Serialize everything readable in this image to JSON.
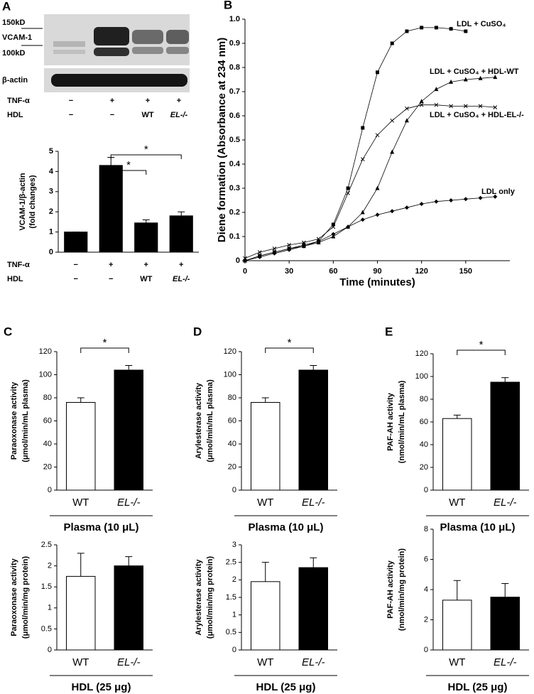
{
  "blot": {
    "panel": "A",
    "markers": [
      "150kD",
      "VCAM-1",
      "100kD",
      "β-actin"
    ],
    "rows": [
      {
        "label": "TNF-α",
        "values": [
          "−",
          "+",
          "+",
          "+"
        ]
      },
      {
        "label": "HDL",
        "values": [
          "−",
          "−",
          "WT",
          "EL-/-"
        ]
      }
    ]
  },
  "chart_data": [
    {
      "type": "bar",
      "ylabel": [
        "VCAM-1/β-actin",
        "(fold changes)"
      ],
      "categories": [
        null,
        null,
        null,
        null
      ],
      "category_rows": [
        {
          "label": "TNF-α",
          "values": [
            "−",
            "+",
            "+",
            "+"
          ]
        },
        {
          "label": "HDL",
          "values": [
            "−",
            "−",
            "WT",
            "EL-/-"
          ]
        }
      ],
      "values": [
        1,
        4.3,
        1.45,
        1.8
      ],
      "errors": [
        0,
        0.4,
        0.15,
        0.2
      ],
      "color": "#000000",
      "ylim": [
        0,
        5
      ],
      "yticks": [
        0,
        1,
        2,
        3,
        4,
        5
      ],
      "significance": [
        {
          "label": "*",
          "from": 1,
          "to": 2
        },
        {
          "label": "*",
          "from": 1,
          "to": 3
        }
      ]
    },
    {
      "type": "line",
      "panel": "B",
      "xlabel": "Time (minutes)",
      "ylabel": "Diene formation (Absorbance at 234 nm)",
      "xlim": [
        0,
        180
      ],
      "xticks": [
        0,
        30,
        60,
        90,
        120,
        150
      ],
      "ylim": [
        0,
        1
      ],
      "yticks": [
        0,
        0.1,
        0.2,
        0.3,
        0.4,
        0.5,
        0.6,
        0.7,
        0.8,
        0.9,
        {
          "value": 1,
          "label": "1.0"
        }
      ],
      "series": [
        {
          "name": "LDL + CuSO₄",
          "color": "#000000",
          "marker": "square",
          "x": [
            0,
            10,
            20,
            30,
            40,
            50,
            60,
            70,
            80,
            90,
            100,
            110,
            120,
            130,
            140,
            150
          ],
          "values": [
            0,
            0.02,
            0.035,
            0.05,
            0.065,
            0.08,
            0.15,
            0.3,
            0.55,
            0.78,
            0.9,
            0.95,
            0.965,
            0.965,
            0.96,
            0.95
          ]
        },
        {
          "name": "LDL + CuSO₄ + HDL-WT",
          "color": "#000000",
          "marker": "triangle",
          "x": [
            0,
            10,
            20,
            30,
            40,
            50,
            60,
            70,
            80,
            90,
            100,
            110,
            120,
            130,
            140,
            150,
            160,
            170
          ],
          "values": [
            0,
            0.02,
            0.035,
            0.05,
            0.06,
            0.075,
            0.1,
            0.14,
            0.2,
            0.3,
            0.45,
            0.58,
            0.66,
            0.71,
            0.74,
            0.75,
            0.755,
            0.76
          ]
        },
        {
          "name": "LDL + CuSO₄ + HDL-EL-/-",
          "color": "#000000",
          "marker": "x",
          "x": [
            0,
            10,
            20,
            30,
            40,
            50,
            60,
            70,
            80,
            90,
            100,
            110,
            120,
            130,
            140,
            150,
            160,
            170
          ],
          "values": [
            0.01,
            0.035,
            0.05,
            0.065,
            0.075,
            0.09,
            0.14,
            0.28,
            0.42,
            0.52,
            0.58,
            0.63,
            0.645,
            0.645,
            0.64,
            0.64,
            0.64,
            0.635
          ]
        },
        {
          "name": "LDL only",
          "color": "#000000",
          "marker": "diamond",
          "x": [
            0,
            10,
            20,
            30,
            40,
            50,
            60,
            70,
            80,
            90,
            100,
            110,
            120,
            130,
            140,
            150,
            160,
            170
          ],
          "values": [
            0,
            0.015,
            0.03,
            0.045,
            0.06,
            0.08,
            0.11,
            0.14,
            0.17,
            0.19,
            0.205,
            0.22,
            0.235,
            0.245,
            0.25,
            0.255,
            0.26,
            0.265
          ]
        }
      ]
    },
    {
      "type": "bar",
      "panel": "C",
      "ylabel": [
        "Paraoxonase activity",
        "(μmol/min/mL plasma)"
      ],
      "categories": [
        "WT",
        "EL-/-"
      ],
      "values": [
        76,
        104
      ],
      "errors": [
        4,
        4
      ],
      "colors": [
        "#ffffff",
        "#000000"
      ],
      "ylim": [
        0,
        120
      ],
      "yticks": [
        0,
        20,
        40,
        60,
        80,
        100,
        120
      ],
      "group_label": "Plasma (10 μL)",
      "significance": "*"
    },
    {
      "type": "bar",
      "ylabel": [
        "Paraoxonase activity",
        "(μmol/min/mg protein)"
      ],
      "categories": [
        "WT",
        "EL-/-"
      ],
      "values": [
        1.75,
        2.0
      ],
      "errors": [
        0.55,
        0.22
      ],
      "colors": [
        "#ffffff",
        "#000000"
      ],
      "ylim": [
        0,
        2.5
      ],
      "yticks": [
        0,
        0.5,
        1,
        1.5,
        2,
        2.5
      ],
      "group_label": "HDL (25 μg)"
    },
    {
      "type": "bar",
      "panel": "D",
      "ylabel": [
        "Arylesterase activity",
        "(μmol/min/mL plasma)"
      ],
      "categories": [
        "WT",
        "EL-/-"
      ],
      "values": [
        76,
        104
      ],
      "errors": [
        4,
        4
      ],
      "colors": [
        "#ffffff",
        "#000000"
      ],
      "ylim": [
        0,
        120
      ],
      "yticks": [
        0,
        20,
        40,
        60,
        80,
        100,
        120
      ],
      "group_label": "Plasma (10 μL)",
      "significance": "*"
    },
    {
      "type": "bar",
      "ylabel": [
        "Arylesterase activity",
        "(μmol/min/mg protein)"
      ],
      "categories": [
        "WT",
        "EL-/-"
      ],
      "values": [
        1.95,
        2.35
      ],
      "errors": [
        0.55,
        0.28
      ],
      "colors": [
        "#ffffff",
        "#000000"
      ],
      "ylim": [
        0,
        3
      ],
      "yticks": [
        0,
        0.5,
        1,
        1.5,
        2,
        2.5,
        3
      ],
      "group_label": "HDL (25 μg)"
    },
    {
      "type": "bar",
      "panel": "E",
      "ylabel": [
        "PAF-AH activity",
        "(nmol/min/mL plasma)"
      ],
      "categories": [
        "WT",
        "EL-/-"
      ],
      "values": [
        63,
        95
      ],
      "errors": [
        3,
        4
      ],
      "colors": [
        "#ffffff",
        "#000000"
      ],
      "ylim": [
        0,
        120
      ],
      "yticks": [
        0,
        20,
        40,
        60,
        80,
        100,
        120
      ],
      "group_label": "Plasma (10 μL)",
      "significance": "*"
    },
    {
      "type": "bar",
      "ylabel": [
        "PAF-AH activity",
        "(nmol/min/mg protein)"
      ],
      "categories": [
        "WT",
        "EL-/-"
      ],
      "values": [
        3.3,
        3.5
      ],
      "errors": [
        1.3,
        0.9
      ],
      "colors": [
        "#ffffff",
        "#000000"
      ],
      "ylim": [
        0,
        8
      ],
      "yticks": [
        0,
        2,
        4,
        6,
        8
      ],
      "group_label": "HDL (25 μg)"
    }
  ]
}
